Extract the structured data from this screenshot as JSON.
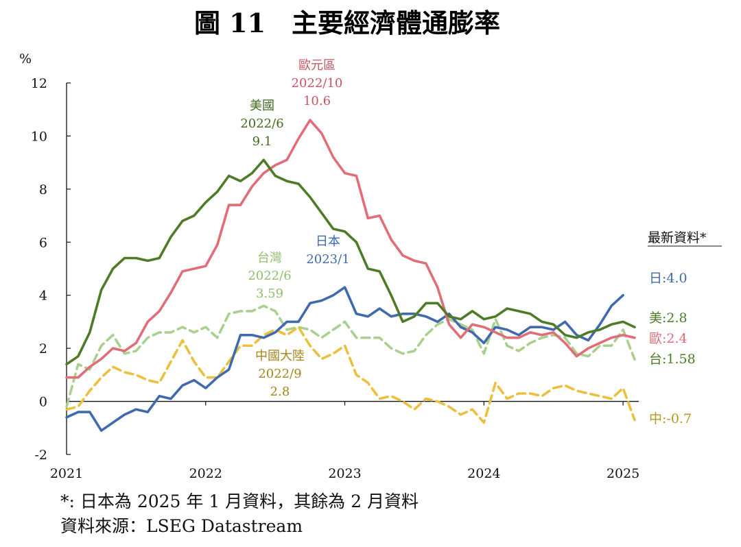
{
  "chart_data": {
    "type": "line",
    "title": "圖 11　主要經濟體通膨率",
    "ylabel": "%",
    "ylim": [
      -2,
      12
    ],
    "yticks": [
      -2,
      0,
      2,
      4,
      6,
      8,
      10,
      12
    ],
    "xlim": [
      "2021-01",
      "2025-02"
    ],
    "xticks": [
      "2021",
      "2022",
      "2023",
      "2024",
      "2025"
    ],
    "grid": false,
    "series": [
      {
        "name": "美國",
        "key": "us",
        "color": "#4e7b26",
        "dash": false,
        "start": "2021-01",
        "values": [
          1.4,
          1.7,
          2.6,
          4.2,
          5.0,
          5.4,
          5.4,
          5.3,
          5.4,
          6.2,
          6.8,
          7.0,
          7.5,
          7.9,
          8.5,
          8.3,
          8.6,
          9.1,
          8.5,
          8.3,
          8.2,
          7.7,
          7.1,
          6.5,
          6.4,
          6.0,
          5.0,
          4.9,
          4.0,
          3.0,
          3.2,
          3.7,
          3.7,
          3.2,
          3.1,
          3.4,
          3.1,
          3.2,
          3.5,
          3.4,
          3.3,
          3.0,
          2.9,
          2.5,
          2.4,
          2.6,
          2.7,
          2.9,
          3.0,
          2.8
        ]
      },
      {
        "name": "歐元區",
        "key": "eu",
        "color": "#e06d77",
        "dash": false,
        "start": "2021-01",
        "values": [
          0.9,
          0.9,
          1.3,
          1.6,
          2.0,
          1.9,
          2.2,
          3.0,
          3.4,
          4.1,
          4.9,
          5.0,
          5.1,
          5.9,
          7.4,
          7.4,
          8.1,
          8.6,
          8.9,
          9.1,
          9.9,
          10.6,
          10.1,
          9.2,
          8.6,
          8.5,
          6.9,
          7.0,
          6.1,
          5.5,
          5.3,
          5.2,
          4.3,
          2.9,
          2.4,
          2.9,
          2.8,
          2.6,
          2.4,
          2.4,
          2.6,
          2.5,
          2.6,
          2.2,
          1.7,
          2.0,
          2.2,
          2.4,
          2.5,
          2.4
        ]
      },
      {
        "name": "日本",
        "key": "jp",
        "color": "#3f6aad",
        "dash": false,
        "start": "2021-01",
        "values": [
          -0.6,
          -0.4,
          -0.4,
          -1.1,
          -0.8,
          -0.5,
          -0.3,
          -0.4,
          0.2,
          0.1,
          0.6,
          0.8,
          0.5,
          0.9,
          1.2,
          2.5,
          2.5,
          2.4,
          2.6,
          3.0,
          3.0,
          3.7,
          3.8,
          4.0,
          4.3,
          3.3,
          3.2,
          3.5,
          3.2,
          3.3,
          3.3,
          3.2,
          3.0,
          3.3,
          2.8,
          2.6,
          2.2,
          2.8,
          2.7,
          2.5,
          2.8,
          2.8,
          2.7,
          3.0,
          2.5,
          2.3,
          2.9,
          3.6,
          4.0
        ]
      },
      {
        "name": "台灣",
        "key": "tw",
        "color": "#a9d08e",
        "dash": true,
        "start": "2021-01",
        "values": [
          -0.2,
          1.4,
          1.2,
          2.1,
          2.5,
          1.8,
          1.9,
          2.4,
          2.6,
          2.6,
          2.8,
          2.6,
          2.8,
          2.4,
          3.3,
          3.4,
          3.4,
          3.6,
          3.4,
          2.7,
          2.8,
          2.7,
          2.4,
          2.7,
          3.0,
          2.4,
          2.4,
          2.4,
          2.0,
          1.8,
          1.9,
          2.5,
          2.9,
          3.1,
          2.9,
          2.7,
          1.8,
          3.1,
          2.1,
          1.9,
          2.2,
          2.4,
          2.5,
          2.4,
          1.8,
          1.7,
          2.1,
          2.1,
          2.7,
          1.58
        ]
      },
      {
        "name": "中國大陸",
        "key": "cn",
        "color": "#ebc03f",
        "dash": true,
        "start": "2021-01",
        "values": [
          -0.3,
          -0.2,
          0.4,
          0.9,
          1.3,
          1.1,
          1.0,
          0.8,
          0.7,
          1.5,
          2.3,
          1.5,
          0.9,
          0.9,
          1.5,
          2.1,
          2.1,
          2.5,
          2.7,
          2.5,
          2.8,
          2.1,
          1.6,
          1.8,
          2.1,
          1.0,
          0.7,
          0.1,
          0.2,
          0.0,
          -0.3,
          0.1,
          0.0,
          -0.2,
          -0.5,
          -0.3,
          -0.8,
          0.7,
          0.1,
          0.3,
          0.3,
          0.2,
          0.5,
          0.6,
          0.4,
          0.3,
          0.2,
          0.1,
          0.5,
          -0.7
        ]
      }
    ],
    "annotations": [
      {
        "key": "eu",
        "lines": [
          "歐元區",
          "2022/10",
          "10.6"
        ]
      },
      {
        "key": "us",
        "lines": [
          "美國",
          "2022/6",
          "9.1"
        ]
      },
      {
        "key": "jp",
        "lines": [
          "日本",
          "2023/1"
        ]
      },
      {
        "key": "tw",
        "lines": [
          "台灣",
          "2022/6",
          "3.59"
        ]
      },
      {
        "key": "cn",
        "lines": [
          "中國大陸",
          "2022/9",
          "2.8"
        ]
      }
    ],
    "latest_title": "最新資料*",
    "latest": [
      {
        "key": "jp",
        "label": "日:4.0",
        "color": "#3f6aad"
      },
      {
        "key": "us",
        "label": "美:2.8",
        "color": "#4e7b26"
      },
      {
        "key": "eu",
        "label": "歐:2.4",
        "color": "#e06d77"
      },
      {
        "key": "tw",
        "label": "台:1.58",
        "color": "#4e7b26"
      },
      {
        "key": "cn",
        "label": "中:-0.7",
        "color": "#b8961f"
      }
    ]
  },
  "footnote": "*: 日本為 2025 年 1 月資料，其餘為 2 月資料",
  "source": "資料來源：LSEG Datastream"
}
